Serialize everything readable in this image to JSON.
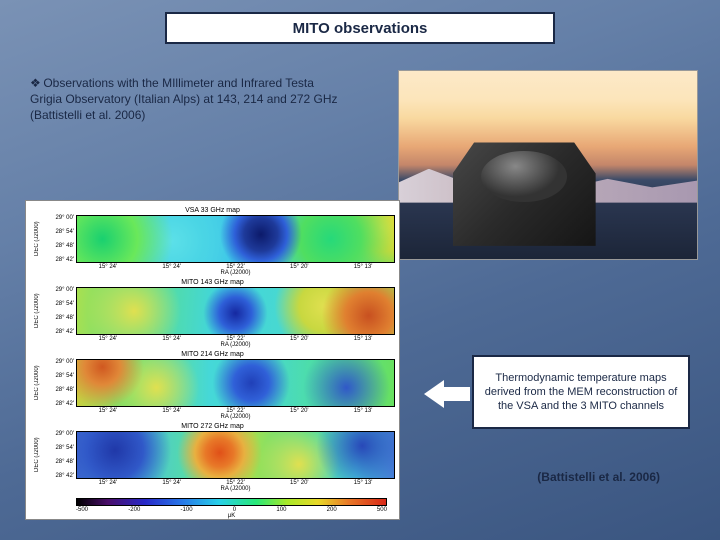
{
  "title": "MITO observations",
  "observation_text": {
    "bullet": "❖",
    "body": "Observations with the MIllimeter and Infrared Testa Grigia Observatory (Italian Alps) at 143, 214 and 272 GHz (Battistelli et al. 2006)"
  },
  "photo": {
    "alt": "MITO telescope on snowy Alps at sunset"
  },
  "maps": {
    "ylabel": "DEC (J2000)",
    "xlabel": "RA (J2000)",
    "yticks": [
      "29° 00'",
      "28° 54'",
      "28° 48'",
      "28° 42'"
    ],
    "xticks": [
      "15° 24'",
      "15° 24'",
      "15° 22'",
      "15° 20'",
      "15° 13'"
    ],
    "panels": [
      {
        "title": "VSA 33 GHz map",
        "style": "heatmap-a"
      },
      {
        "title": "MITO 143 GHz map",
        "style": "heatmap-b"
      },
      {
        "title": "MITO 214 GHz map",
        "style": "heatmap-c"
      },
      {
        "title": "MITO 272 GHz map",
        "style": "heatmap-d"
      }
    ],
    "colorbar": {
      "ticks": [
        "-500",
        "-200",
        "-100",
        "0",
        "100",
        "200",
        "500"
      ],
      "label": "μK"
    }
  },
  "caption": "Thermodynamic temperature maps derived from the MEM reconstruction of the VSA and the 3 MITO channels",
  "citation": "(Battistelli et al. 2006)"
}
